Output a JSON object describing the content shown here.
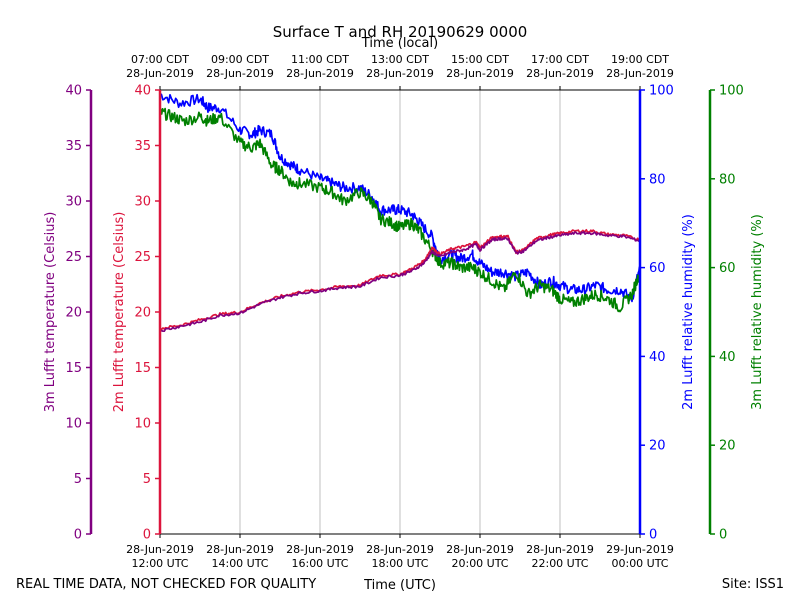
{
  "chart_data": {
    "type": "line",
    "title": "Surface T and RH 20190629 0000",
    "top_axis_label": "Time (local)",
    "xlabel": "Time (UTC)",
    "footer_left": "REAL TIME DATA, NOT CHECKED FOR QUALITY",
    "footer_right": "Site: ISS1",
    "x_range_hours_utc": [
      12,
      24
    ],
    "x_ticks_utc": [
      {
        "hour": 12,
        "line1": "28-Jun-2019",
        "line2": "12:00 UTC"
      },
      {
        "hour": 14,
        "line1": "28-Jun-2019",
        "line2": "14:00 UTC"
      },
      {
        "hour": 16,
        "line1": "28-Jun-2019",
        "line2": "16:00 UTC"
      },
      {
        "hour": 18,
        "line1": "28-Jun-2019",
        "line2": "18:00 UTC"
      },
      {
        "hour": 20,
        "line1": "28-Jun-2019",
        "line2": "20:00 UTC"
      },
      {
        "hour": 22,
        "line1": "28-Jun-2019",
        "line2": "22:00 UTC"
      },
      {
        "hour": 24,
        "line1": "29-Jun-2019",
        "line2": "00:00 UTC"
      }
    ],
    "x_ticks_local": [
      {
        "hour": 12,
        "line1": "07:00 CDT",
        "line2": "28-Jun-2019"
      },
      {
        "hour": 14,
        "line1": "09:00 CDT",
        "line2": "28-Jun-2019"
      },
      {
        "hour": 16,
        "line1": "11:00 CDT",
        "line2": "28-Jun-2019"
      },
      {
        "hour": 18,
        "line1": "13:00 CDT",
        "line2": "28-Jun-2019"
      },
      {
        "hour": 20,
        "line1": "15:00 CDT",
        "line2": "28-Jun-2019"
      },
      {
        "hour": 22,
        "line1": "17:00 CDT",
        "line2": "28-Jun-2019"
      },
      {
        "hour": 24,
        "line1": "19:00 CDT",
        "line2": "28-Jun-2019"
      }
    ],
    "axes": {
      "t3m": {
        "label": "3m Lufft temperature (Celsius)",
        "range": [
          0,
          40
        ],
        "ticks": [
          0,
          5,
          10,
          15,
          20,
          25,
          30,
          35,
          40
        ],
        "color": "#800080"
      },
      "t2m": {
        "label": "2m Lufft temperature (Celsius)",
        "range": [
          0,
          40
        ],
        "ticks": [
          0,
          5,
          10,
          15,
          20,
          25,
          30,
          35,
          40
        ],
        "color": "#dc143c"
      },
      "rh2m": {
        "label": "2m Lufft relative humidity (%)",
        "range": [
          0,
          100
        ],
        "ticks": [
          0,
          20,
          40,
          60,
          80,
          100
        ],
        "color": "#0000ff"
      },
      "rh3m": {
        "label": "3m Lufft relative humidity (%)",
        "range": [
          0,
          100
        ],
        "ticks": [
          0,
          20,
          40,
          60,
          80,
          100
        ],
        "color": "#008000"
      }
    },
    "series": [
      {
        "name": "2m Lufft relative humidity",
        "axis": "rh2m",
        "color": "#0000ff",
        "noise": 1.2,
        "x": [
          12.0,
          12.5,
          13.0,
          13.2,
          13.5,
          14.0,
          14.3,
          14.5,
          14.8,
          15.0,
          15.3,
          15.5,
          16.0,
          16.3,
          16.6,
          17.0,
          17.3,
          17.5,
          17.8,
          18.0,
          18.3,
          18.5,
          18.8,
          19.0,
          19.3,
          19.5,
          19.8,
          20.0,
          20.3,
          20.6,
          20.9,
          21.2,
          21.5,
          21.8,
          22.0,
          22.3,
          22.6,
          22.9,
          23.2,
          23.5,
          23.8,
          24.0
        ],
        "y": [
          99,
          97,
          98,
          96,
          96,
          91,
          90,
          91,
          90,
          85,
          83,
          82,
          80,
          79,
          78,
          78,
          76,
          73,
          73,
          73,
          72,
          70,
          67,
          62,
          63,
          62,
          63,
          61,
          59,
          59,
          58,
          59,
          56,
          57,
          56,
          55,
          55,
          56,
          55,
          55,
          53,
          60
        ]
      },
      {
        "name": "3m Lufft relative humidity",
        "axis": "rh3m",
        "color": "#008000",
        "noise": 1.3,
        "x": [
          12.0,
          12.3,
          12.6,
          13.0,
          13.2,
          13.5,
          14.0,
          14.3,
          14.5,
          14.8,
          15.0,
          15.3,
          15.5,
          16.0,
          16.3,
          16.6,
          17.0,
          17.3,
          17.5,
          17.8,
          18.0,
          18.3,
          18.5,
          18.8,
          19.0,
          19.3,
          19.5,
          19.8,
          20.0,
          20.3,
          20.6,
          20.9,
          21.2,
          21.5,
          21.8,
          22.0,
          22.3,
          22.6,
          22.9,
          23.2,
          23.5,
          23.8,
          24.0
        ],
        "y": [
          95,
          94,
          93,
          94,
          93,
          94,
          88,
          87,
          88,
          83,
          82,
          79,
          79,
          78,
          77,
          75,
          77,
          75,
          71,
          70,
          69,
          70,
          68,
          64,
          61,
          61,
          60,
          60,
          59,
          57,
          55,
          59,
          54,
          56,
          55,
          53,
          52,
          53,
          54,
          53,
          51,
          54,
          59
        ]
      },
      {
        "name": "2m Lufft temperature",
        "axis": "t2m",
        "color": "#dc143c",
        "noise": 0.12,
        "x": [
          12.0,
          12.5,
          13.0,
          13.5,
          14.0,
          14.5,
          15.0,
          15.5,
          16.0,
          16.5,
          17.0,
          17.5,
          18.0,
          18.3,
          18.6,
          18.8,
          19.0,
          19.3,
          19.6,
          19.9,
          20.0,
          20.3,
          20.5,
          20.7,
          20.9,
          21.1,
          21.4,
          21.7,
          22.0,
          22.4,
          22.8,
          23.2,
          23.6,
          24.0
        ],
        "y": [
          18.5,
          18.8,
          19.3,
          19.8,
          20.0,
          20.8,
          21.4,
          21.8,
          22.0,
          22.3,
          22.4,
          23.3,
          23.4,
          23.9,
          24.6,
          25.8,
          25.2,
          25.7,
          25.9,
          26.3,
          25.8,
          26.7,
          26.8,
          26.8,
          25.4,
          25.6,
          26.6,
          26.9,
          27.1,
          27.3,
          27.3,
          27.0,
          26.9,
          26.5
        ]
      },
      {
        "name": "3m Lufft temperature",
        "axis": "t3m",
        "color": "#800080",
        "noise": 0.12,
        "x": [
          12.0,
          12.5,
          13.0,
          13.5,
          14.0,
          14.5,
          15.0,
          15.5,
          16.0,
          16.5,
          17.0,
          17.5,
          18.0,
          18.3,
          18.6,
          18.8,
          19.0,
          19.3,
          19.6,
          19.9,
          20.0,
          20.3,
          20.5,
          20.7,
          20.9,
          21.1,
          21.4,
          21.7,
          22.0,
          22.4,
          22.8,
          23.2,
          23.6,
          24.0
        ],
        "y": [
          18.3,
          18.7,
          19.1,
          19.7,
          19.9,
          20.7,
          21.3,
          21.7,
          21.9,
          22.2,
          22.3,
          23.1,
          23.3,
          23.7,
          24.4,
          25.4,
          25.0,
          25.4,
          25.6,
          26.1,
          25.6,
          26.5,
          26.6,
          26.6,
          25.3,
          25.5,
          26.4,
          26.7,
          26.9,
          27.1,
          27.1,
          26.9,
          26.8,
          26.4
        ]
      }
    ]
  }
}
